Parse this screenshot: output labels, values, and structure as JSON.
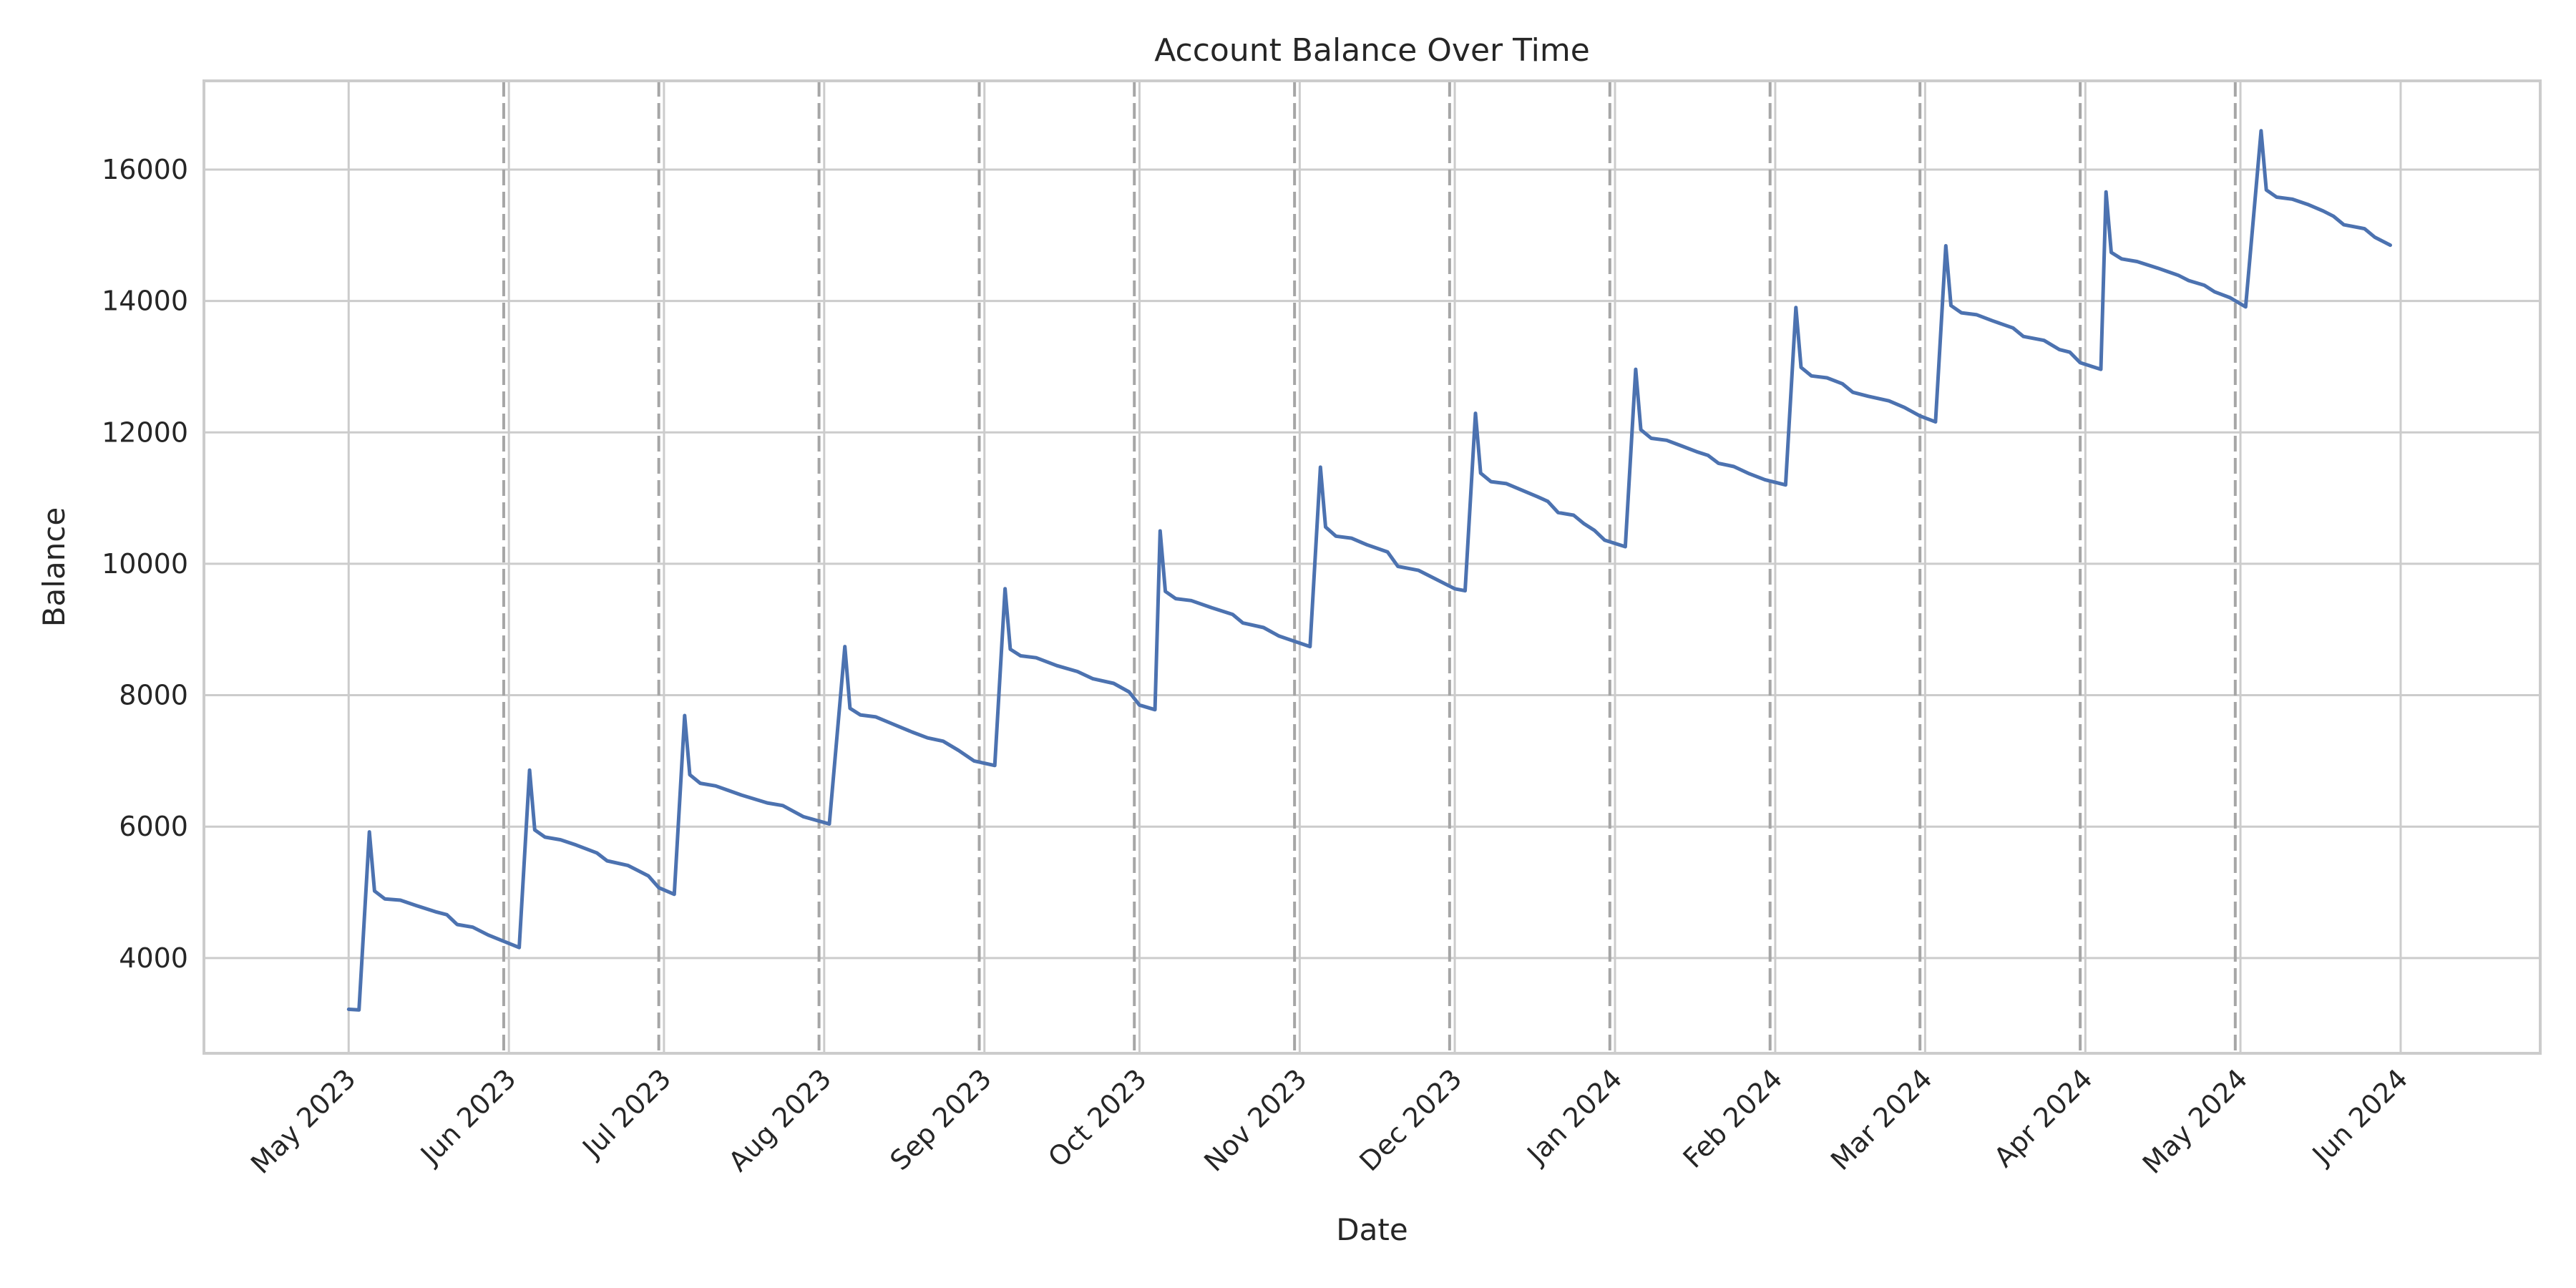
{
  "chart_data": {
    "type": "line",
    "title": "Account Balance Over Time",
    "xlabel": "Date",
    "ylabel": "Balance",
    "xlim": [
      "2023-04-03",
      "2024-06-28"
    ],
    "ylim": [
      2550,
      17350
    ],
    "y_ticks": [
      4000,
      6000,
      8000,
      10000,
      12000,
      14000,
      16000
    ],
    "x_ticks": [
      {
        "date": "2023-05-01",
        "label": "May 2023"
      },
      {
        "date": "2023-06-01",
        "label": "Jun 2023"
      },
      {
        "date": "2023-07-01",
        "label": "Jul 2023"
      },
      {
        "date": "2023-08-01",
        "label": "Aug 2023"
      },
      {
        "date": "2023-09-01",
        "label": "Sep 2023"
      },
      {
        "date": "2023-10-01",
        "label": "Oct 2023"
      },
      {
        "date": "2023-11-01",
        "label": "Nov 2023"
      },
      {
        "date": "2023-12-01",
        "label": "Dec 2023"
      },
      {
        "date": "2024-01-01",
        "label": "Jan 2024"
      },
      {
        "date": "2024-02-01",
        "label": "Feb 2024"
      },
      {
        "date": "2024-03-01",
        "label": "Mar 2024"
      },
      {
        "date": "2024-04-01",
        "label": "Apr 2024"
      },
      {
        "date": "2024-05-01",
        "label": "May 2024"
      },
      {
        "date": "2024-06-01",
        "label": "Jun 2024"
      }
    ],
    "grid": true,
    "dashed_vertical_lines": [
      "2023-05-31",
      "2023-06-30",
      "2023-07-31",
      "2023-08-31",
      "2023-09-30",
      "2023-10-31",
      "2023-11-30",
      "2023-12-31",
      "2024-01-31",
      "2024-02-29",
      "2024-03-31",
      "2024-04-30"
    ],
    "colors": {
      "line": "#4c72b0",
      "grid": "#cccccc",
      "dashed": "#a6a6a6"
    },
    "series": [
      {
        "points": [
          [
            "2023-05-01",
            3220
          ],
          [
            "2023-05-03",
            3210
          ],
          [
            "2023-05-05",
            5920
          ],
          [
            "2023-05-06",
            5020
          ],
          [
            "2023-05-08",
            4900
          ],
          [
            "2023-05-11",
            4880
          ],
          [
            "2023-05-14",
            4800
          ],
          [
            "2023-05-18",
            4700
          ],
          [
            "2023-05-20",
            4660
          ],
          [
            "2023-05-22",
            4510
          ],
          [
            "2023-05-25",
            4470
          ],
          [
            "2023-05-28",
            4350
          ],
          [
            "2023-06-03",
            4160
          ],
          [
            "2023-06-05",
            6860
          ],
          [
            "2023-06-06",
            5950
          ],
          [
            "2023-06-08",
            5840
          ],
          [
            "2023-06-11",
            5800
          ],
          [
            "2023-06-14",
            5720
          ],
          [
            "2023-06-18",
            5600
          ],
          [
            "2023-06-20",
            5480
          ],
          [
            "2023-06-24",
            5410
          ],
          [
            "2023-06-28",
            5250
          ],
          [
            "2023-06-30",
            5070
          ],
          [
            "2023-07-03",
            4970
          ],
          [
            "2023-07-05",
            7690
          ],
          [
            "2023-07-06",
            6790
          ],
          [
            "2023-07-08",
            6660
          ],
          [
            "2023-07-11",
            6620
          ],
          [
            "2023-07-16",
            6480
          ],
          [
            "2023-07-21",
            6360
          ],
          [
            "2023-07-24",
            6320
          ],
          [
            "2023-07-28",
            6150
          ],
          [
            "2023-08-02",
            6040
          ],
          [
            "2023-08-05",
            8740
          ],
          [
            "2023-08-06",
            7800
          ],
          [
            "2023-08-08",
            7700
          ],
          [
            "2023-08-11",
            7670
          ],
          [
            "2023-08-14",
            7570
          ],
          [
            "2023-08-18",
            7440
          ],
          [
            "2023-08-21",
            7350
          ],
          [
            "2023-08-24",
            7300
          ],
          [
            "2023-08-27",
            7160
          ],
          [
            "2023-08-30",
            7000
          ],
          [
            "2023-09-03",
            6930
          ],
          [
            "2023-09-05",
            9620
          ],
          [
            "2023-09-06",
            8700
          ],
          [
            "2023-09-08",
            8600
          ],
          [
            "2023-09-11",
            8570
          ],
          [
            "2023-09-15",
            8450
          ],
          [
            "2023-09-19",
            8360
          ],
          [
            "2023-09-22",
            8250
          ],
          [
            "2023-09-26",
            8180
          ],
          [
            "2023-09-29",
            8050
          ],
          [
            "2023-10-01",
            7850
          ],
          [
            "2023-10-04",
            7780
          ],
          [
            "2023-10-05",
            10500
          ],
          [
            "2023-10-06",
            9580
          ],
          [
            "2023-10-08",
            9470
          ],
          [
            "2023-10-11",
            9440
          ],
          [
            "2023-10-15",
            9330
          ],
          [
            "2023-10-19",
            9230
          ],
          [
            "2023-10-21",
            9100
          ],
          [
            "2023-10-25",
            9030
          ],
          [
            "2023-10-28",
            8900
          ],
          [
            "2023-11-03",
            8740
          ],
          [
            "2023-11-05",
            11470
          ],
          [
            "2023-11-06",
            10560
          ],
          [
            "2023-11-08",
            10420
          ],
          [
            "2023-11-11",
            10390
          ],
          [
            "2023-11-14",
            10290
          ],
          [
            "2023-11-18",
            10180
          ],
          [
            "2023-11-20",
            9960
          ],
          [
            "2023-11-24",
            9900
          ],
          [
            "2023-11-27",
            9780
          ],
          [
            "2023-12-01",
            9620
          ],
          [
            "2023-12-03",
            9590
          ],
          [
            "2023-12-05",
            12290
          ],
          [
            "2023-12-06",
            11380
          ],
          [
            "2023-12-08",
            11250
          ],
          [
            "2023-12-11",
            11220
          ],
          [
            "2023-12-14",
            11120
          ],
          [
            "2023-12-17",
            11020
          ],
          [
            "2023-12-19",
            10950
          ],
          [
            "2023-12-21",
            10780
          ],
          [
            "2023-12-24",
            10740
          ],
          [
            "2023-12-26",
            10610
          ],
          [
            "2023-12-28",
            10510
          ],
          [
            "2023-12-30",
            10360
          ],
          [
            "2024-01-03",
            10260
          ],
          [
            "2024-01-05",
            12960
          ],
          [
            "2024-01-06",
            12040
          ],
          [
            "2024-01-08",
            11910
          ],
          [
            "2024-01-11",
            11880
          ],
          [
            "2024-01-14",
            11790
          ],
          [
            "2024-01-17",
            11700
          ],
          [
            "2024-01-19",
            11650
          ],
          [
            "2024-01-21",
            11530
          ],
          [
            "2024-01-24",
            11480
          ],
          [
            "2024-01-27",
            11370
          ],
          [
            "2024-01-30",
            11280
          ],
          [
            "2024-02-03",
            11200
          ],
          [
            "2024-02-05",
            13900
          ],
          [
            "2024-02-06",
            12990
          ],
          [
            "2024-02-08",
            12860
          ],
          [
            "2024-02-11",
            12830
          ],
          [
            "2024-02-14",
            12740
          ],
          [
            "2024-02-16",
            12610
          ],
          [
            "2024-02-19",
            12550
          ],
          [
            "2024-02-23",
            12480
          ],
          [
            "2024-02-26",
            12380
          ],
          [
            "2024-02-29",
            12250
          ],
          [
            "2024-03-03",
            12160
          ],
          [
            "2024-03-05",
            14840
          ],
          [
            "2024-03-06",
            13930
          ],
          [
            "2024-03-08",
            13820
          ],
          [
            "2024-03-11",
            13790
          ],
          [
            "2024-03-14",
            13700
          ],
          [
            "2024-03-18",
            13590
          ],
          [
            "2024-03-20",
            13460
          ],
          [
            "2024-03-24",
            13400
          ],
          [
            "2024-03-27",
            13260
          ],
          [
            "2024-03-29",
            13220
          ],
          [
            "2024-03-31",
            13060
          ],
          [
            "2024-04-04",
            12960
          ],
          [
            "2024-04-05",
            15660
          ],
          [
            "2024-04-06",
            14740
          ],
          [
            "2024-04-08",
            14640
          ],
          [
            "2024-04-11",
            14600
          ],
          [
            "2024-04-15",
            14500
          ],
          [
            "2024-04-19",
            14390
          ],
          [
            "2024-04-21",
            14310
          ],
          [
            "2024-04-24",
            14240
          ],
          [
            "2024-04-26",
            14140
          ],
          [
            "2024-04-29",
            14050
          ],
          [
            "2024-05-02",
            13910
          ],
          [
            "2024-05-05",
            16590
          ],
          [
            "2024-05-06",
            15690
          ],
          [
            "2024-05-08",
            15580
          ],
          [
            "2024-05-11",
            15550
          ],
          [
            "2024-05-14",
            15470
          ],
          [
            "2024-05-17",
            15370
          ],
          [
            "2024-05-19",
            15290
          ],
          [
            "2024-05-21",
            15160
          ],
          [
            "2024-05-25",
            15100
          ],
          [
            "2024-05-27",
            14970
          ],
          [
            "2024-05-30",
            14850
          ]
        ]
      }
    ]
  }
}
